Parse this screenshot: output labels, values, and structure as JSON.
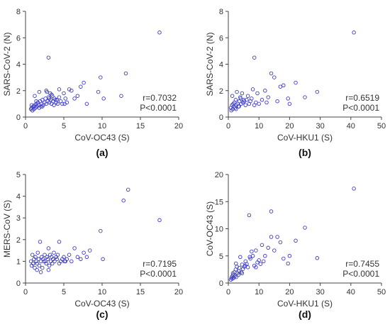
{
  "chart_data": [
    {
      "type": "scatter",
      "panel_label": "(a)",
      "xlabel": "CoV-OC43 (S)",
      "ylabel": "SARS-CoV-2 (N)",
      "xlim": [
        0,
        20
      ],
      "ylim": [
        0,
        8
      ],
      "xticks": [
        "0",
        "5",
        "10",
        "15",
        "20"
      ],
      "yticks": [
        "0",
        "2",
        "4",
        "6",
        "8"
      ],
      "r_text": "r=0.7032",
      "p_text": "P<0.0001",
      "grid": false,
      "series": [
        {
          "x": [
            0.7,
            0.8,
            0.9,
            1.0,
            1.1,
            1.2,
            1.3,
            1.4,
            1.5,
            1.6,
            1.7,
            1.8,
            1.9,
            2.0,
            2.1,
            2.2,
            2.3,
            2.5,
            2.6,
            2.7,
            2.8,
            2.9,
            3.0,
            3.1,
            3.2,
            3.3,
            3.4,
            3.5,
            3.6,
            3.7,
            3.8,
            4.0,
            4.1,
            4.2,
            4.4,
            4.6,
            4.8,
            5.0,
            5.2,
            5.4,
            5.7,
            6.0,
            6.4,
            6.8,
            7.2,
            7.6,
            8.0,
            9.5,
            9.8,
            10.2,
            12.5,
            13.1,
            17.5,
            0.9,
            1.1,
            1.4,
            1.8,
            2.2,
            2.7,
            3.1,
            3.4,
            3.9,
            4.4,
            5.1,
            0.8,
            1.2,
            3.0
          ],
          "y": [
            0.6,
            0.7,
            0.5,
            0.8,
            0.6,
            0.9,
            0.7,
            1.0,
            0.8,
            1.1,
            0.9,
            0.7,
            1.2,
            0.8,
            1.0,
            1.3,
            0.9,
            1.1,
            1.4,
            1.0,
            1.9,
            1.2,
            1.5,
            1.1,
            1.8,
            1.3,
            1.0,
            1.6,
            1.2,
            0.9,
            1.4,
            1.1,
            1.3,
            1.0,
            1.5,
            1.2,
            1.0,
            1.8,
            1.4,
            1.1,
            2.1,
            2.0,
            1.4,
            1.6,
            2.3,
            2.6,
            1.0,
            1.9,
            3.0,
            1.4,
            1.6,
            3.3,
            6.4,
            0.5,
            0.8,
            1.2,
            1.9,
            0.8,
            2.0,
            1.4,
            1.7,
            1.3,
            2.1,
            1.0,
            0.9,
            1.6,
            4.5
          ]
        }
      ]
    },
    {
      "type": "scatter",
      "panel_label": "(b)",
      "xlabel": "CoV-HKU1 (S)",
      "ylabel": "SARS-CoV-2 (N)",
      "xlim": [
        0,
        50
      ],
      "ylim": [
        0,
        8
      ],
      "xticks": [
        "0",
        "10",
        "20",
        "30",
        "40",
        "50"
      ],
      "yticks": [
        "0",
        "2",
        "4",
        "6",
        "8"
      ],
      "r_text": "r=0.6519",
      "p_text": "P<0.0001",
      "grid": false,
      "series": [
        {
          "x": [
            0.8,
            1.0,
            1.2,
            1.4,
            1.6,
            1.8,
            2.0,
            2.2,
            2.4,
            2.6,
            2.8,
            3.0,
            3.3,
            3.6,
            3.9,
            4.2,
            4.5,
            4.8,
            5.2,
            5.6,
            6.0,
            6.4,
            6.8,
            7.2,
            7.6,
            8.0,
            8.5,
            9.0,
            9.5,
            10.0,
            11.0,
            12.0,
            13.0,
            14.0,
            15.0,
            16.0,
            17.0,
            18.0,
            19.5,
            20.0,
            22.0,
            25.0,
            29.0,
            41.0,
            1.3,
            2.5,
            4.0,
            5.0,
            8.5,
            12.5,
            3.5
          ],
          "y": [
            0.7,
            0.5,
            0.9,
            0.6,
            1.0,
            0.8,
            1.1,
            0.7,
            1.3,
            0.9,
            1.9,
            1.0,
            0.8,
            1.2,
            1.5,
            1.0,
            1.8,
            1.1,
            1.2,
            0.9,
            1.3,
            1.6,
            1.0,
            1.2,
            1.4,
            2.1,
            4.5,
            1.1,
            1.8,
            1.0,
            1.3,
            2.0,
            1.5,
            3.3,
            3.0,
            1.2,
            2.3,
            2.4,
            1.4,
            1.0,
            2.6,
            1.5,
            1.9,
            6.4,
            1.6,
            0.6,
            1.4,
            1.3,
            0.9,
            1.1,
            0.8
          ]
        }
      ]
    },
    {
      "type": "scatter",
      "panel_label": "(c)",
      "xlabel": "CoV-OC43 (S)",
      "ylabel": "MERS-CoV (S)",
      "xlim": [
        0,
        20
      ],
      "ylim": [
        0,
        5
      ],
      "xticks": [
        "0",
        "5",
        "10",
        "15",
        "20"
      ],
      "yticks": [
        "0",
        "1",
        "2",
        "3",
        "4",
        "5"
      ],
      "r_text": "r=0.7195",
      "p_text": "P<0.0001",
      "grid": false,
      "series": [
        {
          "x": [
            0.7,
            0.8,
            0.9,
            1.0,
            1.1,
            1.2,
            1.3,
            1.4,
            1.5,
            1.6,
            1.7,
            1.8,
            1.9,
            2.0,
            2.1,
            2.2,
            2.3,
            2.5,
            2.6,
            2.7,
            2.8,
            2.9,
            3.0,
            3.1,
            3.2,
            3.3,
            3.4,
            3.5,
            3.6,
            3.7,
            3.8,
            4.0,
            4.1,
            4.2,
            4.4,
            4.6,
            4.8,
            5.0,
            5.2,
            5.4,
            5.7,
            6.0,
            6.4,
            6.8,
            7.2,
            7.6,
            8.0,
            8.4,
            9.8,
            10.1,
            12.8,
            13.4,
            17.5,
            1.0,
            1.5,
            2.0,
            2.4,
            3.0,
            3.6,
            4.4,
            5.1
          ],
          "y": [
            1.0,
            0.8,
            1.3,
            0.9,
            1.1,
            0.7,
            1.2,
            1.0,
            0.9,
            1.4,
            1.1,
            0.8,
            1.9,
            1.0,
            1.2,
            0.7,
            1.1,
            1.3,
            1.0,
            0.9,
            1.2,
            1.1,
            1.6,
            0.8,
            1.3,
            1.0,
            1.2,
            0.9,
            1.1,
            1.4,
            1.0,
            1.2,
            1.1,
            1.3,
            1.9,
            1.0,
            1.1,
            1.2,
            1.0,
            1.1,
            1.3,
            1.0,
            1.6,
            1.2,
            1.1,
            1.4,
            1.2,
            1.5,
            2.4,
            1.1,
            3.8,
            4.3,
            2.9,
            0.9,
            0.6,
            0.5,
            1.0,
            0.6,
            1.1,
            0.9,
            1.0
          ]
        }
      ]
    },
    {
      "type": "scatter",
      "panel_label": "(d)",
      "xlabel": "CoV-HKU1 (S)",
      "ylabel": "CoV-OC43 (S)",
      "xlim": [
        0,
        50
      ],
      "ylim": [
        0,
        20
      ],
      "xticks": [
        "0",
        "10",
        "20",
        "30",
        "40",
        "50"
      ],
      "yticks": [
        "0",
        "5",
        "10",
        "15",
        "20"
      ],
      "r_text": "r=0.7455",
      "p_text": "P<0.0001",
      "grid": false,
      "series": [
        {
          "x": [
            0.8,
            1.0,
            1.2,
            1.4,
            1.6,
            1.8,
            2.0,
            2.2,
            2.4,
            2.6,
            2.8,
            3.0,
            3.3,
            3.6,
            3.9,
            4.2,
            4.5,
            4.8,
            5.2,
            5.6,
            6.0,
            6.4,
            6.8,
            7.2,
            7.6,
            8.0,
            8.5,
            9.0,
            9.5,
            10.0,
            10.5,
            11.0,
            12.0,
            13.0,
            14.0,
            14.0,
            15.0,
            16.0,
            17.0,
            18.0,
            19.5,
            20.0,
            22.0,
            25.0,
            29.0,
            41.0,
            1.5,
            2.5,
            3.5,
            4.5,
            5.5,
            7.0,
            9.0,
            11.5
          ],
          "y": [
            0.6,
            0.9,
            1.2,
            0.8,
            1.5,
            1.0,
            2.0,
            1.3,
            2.5,
            1.1,
            3.0,
            1.8,
            1.5,
            2.8,
            4.8,
            2.0,
            3.4,
            2.6,
            3.0,
            4.0,
            3.5,
            2.9,
            12.5,
            4.5,
            5.8,
            5.0,
            3.2,
            6.0,
            3.8,
            4.2,
            3.5,
            7.0,
            5.0,
            6.5,
            13.2,
            8.5,
            6.0,
            8.5,
            7.5,
            4.5,
            3.6,
            5.0,
            7.8,
            10.2,
            4.6,
            17.4,
            1.8,
            3.6,
            2.2,
            1.8,
            3.2,
            4.8,
            2.9,
            4.0
          ]
        }
      ]
    }
  ]
}
